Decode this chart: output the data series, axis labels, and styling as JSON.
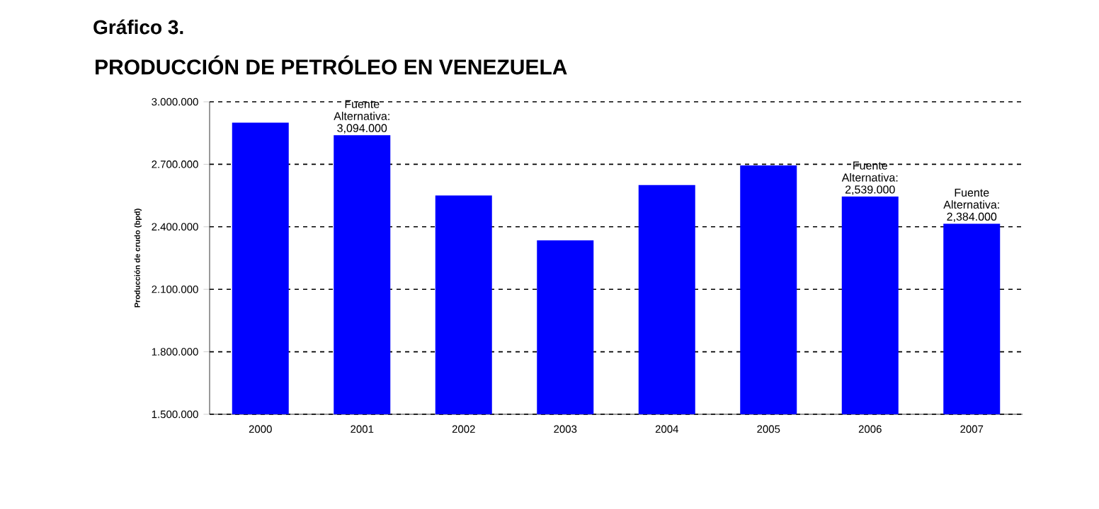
{
  "chart_data": {
    "type": "bar",
    "title": "Gráfico 3.",
    "subtitle": "PRODUCCIÓN DE PETRÓLEO EN VENEZUELA",
    "ylabel": "Producción de crudo (bpd)",
    "categories": [
      "2000",
      "2001",
      "2002",
      "2003",
      "2004",
      "2005",
      "2006",
      "2007"
    ],
    "values": [
      2900000,
      2840000,
      2550000,
      2335000,
      2600000,
      2695000,
      2545000,
      2415000
    ],
    "color": "#0000ff",
    "ylim": [
      1500000,
      3000000
    ],
    "yticks": [
      {
        "value": 1500000,
        "label": "1.500.000"
      },
      {
        "value": 1800000,
        "label": "1.800.000"
      },
      {
        "value": 2100000,
        "label": "2.100.000"
      },
      {
        "value": 2400000,
        "label": "2.400.000"
      },
      {
        "value": 2700000,
        "label": "2.700.000"
      },
      {
        "value": 3000000,
        "label": "3.000.000"
      }
    ],
    "grid": "y",
    "annotations": [
      {
        "text": "Fuente Alternativa: 3,094.000",
        "x": "2001",
        "y": 2840000
      },
      {
        "text": "Fuente Alternativa: 2,539.000",
        "x": "2006",
        "y": 2545000
      },
      {
        "text": "Fuente Alternativa: 2,384.000",
        "x": "2007",
        "y": 2415000
      }
    ]
  }
}
